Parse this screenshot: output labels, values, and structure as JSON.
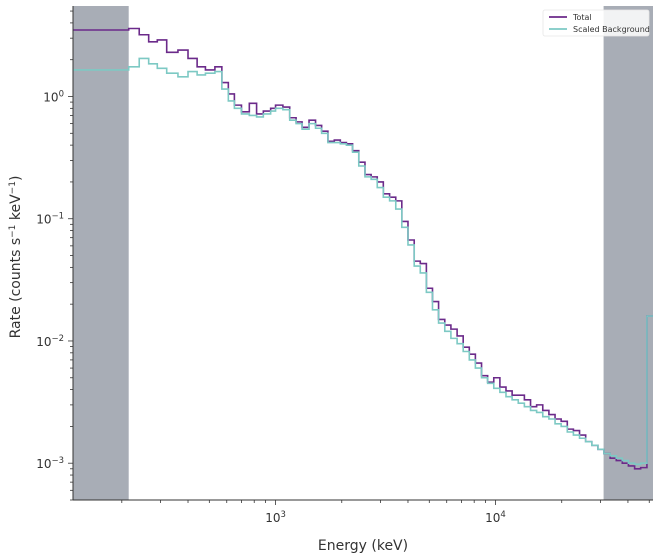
{
  "chart_data": {
    "type": "line",
    "step": true,
    "x_scale": "log",
    "y_scale": "log",
    "xlim": [
      120,
      52000
    ],
    "ylim": [
      0.0005,
      5.5
    ],
    "xlabel": "Energy (keV)",
    "ylabel_parts": {
      "pre": "Rate (counts s",
      "sup1": "−1",
      "mid": " keV",
      "sup2": "−1",
      "post": ")"
    },
    "x_ticks": [
      {
        "value": 1000,
        "base": "10",
        "exp": "3"
      },
      {
        "value": 10000,
        "base": "10",
        "exp": "4"
      }
    ],
    "y_ticks": [
      {
        "value": 0.001,
        "base": "10",
        "exp": "−3"
      },
      {
        "value": 0.01,
        "base": "10",
        "exp": "−2"
      },
      {
        "value": 0.1,
        "base": "10",
        "exp": "−1"
      },
      {
        "value": 1,
        "base": "10",
        "exp": "0"
      }
    ],
    "shaded_regions": [
      {
        "x0": 120,
        "x1": 215
      },
      {
        "x0": 31000,
        "x1": 52000
      }
    ],
    "legend": {
      "position": "top-right",
      "entries": [
        "Total",
        "Scaled  Background"
      ]
    },
    "series": [
      {
        "name": "Total",
        "color": "#6b2a8a",
        "points": [
          [
            120,
            3.5
          ],
          [
            215,
            3.6
          ],
          [
            240,
            3.2
          ],
          [
            265,
            2.8
          ],
          [
            290,
            2.9
          ],
          [
            320,
            2.3
          ],
          [
            360,
            2.4
          ],
          [
            400,
            2.05
          ],
          [
            440,
            1.75
          ],
          [
            480,
            1.65
          ],
          [
            530,
            1.75
          ],
          [
            570,
            1.3
          ],
          [
            610,
            1.05
          ],
          [
            650,
            0.85
          ],
          [
            700,
            0.75
          ],
          [
            760,
            0.88
          ],
          [
            820,
            0.72
          ],
          [
            880,
            0.76
          ],
          [
            950,
            0.8
          ],
          [
            1000,
            0.85
          ],
          [
            1080,
            0.82
          ],
          [
            1160,
            0.67
          ],
          [
            1240,
            0.62
          ],
          [
            1320,
            0.56
          ],
          [
            1420,
            0.64
          ],
          [
            1520,
            0.58
          ],
          [
            1620,
            0.52
          ],
          [
            1730,
            0.43
          ],
          [
            1850,
            0.44
          ],
          [
            1970,
            0.42
          ],
          [
            2100,
            0.41
          ],
          [
            2240,
            0.36
          ],
          [
            2390,
            0.29
          ],
          [
            2550,
            0.23
          ],
          [
            2720,
            0.22
          ],
          [
            2900,
            0.2
          ],
          [
            3090,
            0.16
          ],
          [
            3300,
            0.15
          ],
          [
            3520,
            0.14
          ],
          [
            3750,
            0.095
          ],
          [
            4000,
            0.067
          ],
          [
            4270,
            0.045
          ],
          [
            4550,
            0.043
          ],
          [
            4850,
            0.027
          ],
          [
            5170,
            0.021
          ],
          [
            5510,
            0.015
          ],
          [
            5880,
            0.0135
          ],
          [
            6270,
            0.0125
          ],
          [
            6690,
            0.011
          ],
          [
            7130,
            0.0089
          ],
          [
            7600,
            0.0078
          ],
          [
            8100,
            0.0066
          ],
          [
            8640,
            0.0052
          ],
          [
            9210,
            0.0046
          ],
          [
            9820,
            0.005
          ],
          [
            10470,
            0.0042
          ],
          [
            11160,
            0.0039
          ],
          [
            11900,
            0.0036
          ],
          [
            12690,
            0.0036
          ],
          [
            13530,
            0.0033
          ],
          [
            14430,
            0.0029
          ],
          [
            15380,
            0.003
          ],
          [
            16400,
            0.0027
          ],
          [
            17490,
            0.0025
          ],
          [
            18650,
            0.0023
          ],
          [
            19880,
            0.0022
          ],
          [
            21200,
            0.0019
          ],
          [
            22600,
            0.00185
          ],
          [
            24100,
            0.0017
          ],
          [
            25700,
            0.0015
          ],
          [
            27400,
            0.0014
          ],
          [
            29200,
            0.0013
          ],
          [
            31100,
            0.0012
          ],
          [
            33200,
            0.0011
          ],
          [
            35400,
            0.00105
          ],
          [
            37700,
            0.001
          ],
          [
            40200,
            0.00095
          ],
          [
            42900,
            0.0009
          ],
          [
            45700,
            0.00092
          ],
          [
            48800,
            0.016
          ],
          [
            52000,
            0.016
          ]
        ]
      },
      {
        "name": "Scaled  Background",
        "color": "#7dc9c4",
        "points": [
          [
            120,
            1.65
          ],
          [
            215,
            1.75
          ],
          [
            240,
            2.05
          ],
          [
            265,
            1.85
          ],
          [
            290,
            1.7
          ],
          [
            320,
            1.55
          ],
          [
            360,
            1.45
          ],
          [
            400,
            1.6
          ],
          [
            440,
            1.5
          ],
          [
            480,
            1.55
          ],
          [
            530,
            1.6
          ],
          [
            570,
            1.15
          ],
          [
            610,
            0.92
          ],
          [
            650,
            0.8
          ],
          [
            700,
            0.72
          ],
          [
            760,
            0.7
          ],
          [
            820,
            0.68
          ],
          [
            880,
            0.72
          ],
          [
            950,
            0.76
          ],
          [
            1000,
            0.8
          ],
          [
            1080,
            0.78
          ],
          [
            1160,
            0.64
          ],
          [
            1240,
            0.6
          ],
          [
            1320,
            0.54
          ],
          [
            1420,
            0.6
          ],
          [
            1520,
            0.55
          ],
          [
            1620,
            0.5
          ],
          [
            1730,
            0.42
          ],
          [
            1850,
            0.42
          ],
          [
            1970,
            0.41
          ],
          [
            2100,
            0.4
          ],
          [
            2240,
            0.35
          ],
          [
            2390,
            0.27
          ],
          [
            2550,
            0.22
          ],
          [
            2720,
            0.21
          ],
          [
            2900,
            0.18
          ],
          [
            3090,
            0.15
          ],
          [
            3300,
            0.14
          ],
          [
            3520,
            0.12
          ],
          [
            3750,
            0.085
          ],
          [
            4000,
            0.061
          ],
          [
            4270,
            0.041
          ],
          [
            4550,
            0.036
          ],
          [
            4850,
            0.025
          ],
          [
            5170,
            0.018
          ],
          [
            5510,
            0.014
          ],
          [
            5880,
            0.012
          ],
          [
            6270,
            0.0105
          ],
          [
            6690,
            0.0095
          ],
          [
            7130,
            0.0082
          ],
          [
            7600,
            0.007
          ],
          [
            8100,
            0.006
          ],
          [
            8640,
            0.005
          ],
          [
            9210,
            0.0045
          ],
          [
            9820,
            0.0041
          ],
          [
            10470,
            0.0038
          ],
          [
            11160,
            0.0035
          ],
          [
            11900,
            0.0033
          ],
          [
            12690,
            0.0031
          ],
          [
            13530,
            0.0029
          ],
          [
            14430,
            0.0027
          ],
          [
            15380,
            0.0026
          ],
          [
            16400,
            0.0024
          ],
          [
            17490,
            0.0023
          ],
          [
            18650,
            0.0021
          ],
          [
            19880,
            0.002
          ],
          [
            21200,
            0.0018
          ],
          [
            22600,
            0.0017
          ],
          [
            24100,
            0.0016
          ],
          [
            25700,
            0.0015
          ],
          [
            27400,
            0.0014
          ],
          [
            29200,
            0.0013
          ],
          [
            31100,
            0.0012
          ],
          [
            33200,
            0.00115
          ],
          [
            35400,
            0.0011
          ],
          [
            37700,
            0.00105
          ],
          [
            40200,
            0.001
          ],
          [
            42900,
            0.00098
          ],
          [
            45700,
            0.001
          ],
          [
            48800,
            0.016
          ],
          [
            52000,
            0.016
          ]
        ]
      }
    ]
  }
}
